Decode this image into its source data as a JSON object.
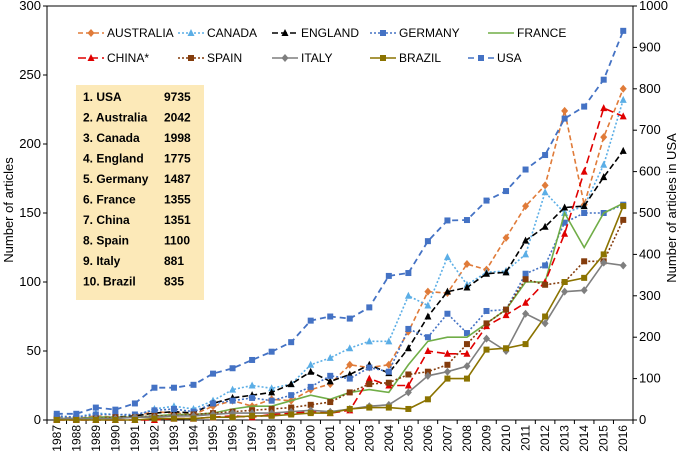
{
  "chart_data": {
    "type": "line",
    "x": [
      1987,
      1988,
      1989,
      1990,
      1991,
      1992,
      1993,
      1994,
      1995,
      1996,
      1997,
      1998,
      1999,
      2000,
      2001,
      2002,
      2003,
      2004,
      2005,
      2006,
      2007,
      2008,
      2009,
      2010,
      2011,
      2012,
      2013,
      2014,
      2015,
      2016
    ],
    "ylabel_left": "Number of articles",
    "ylabel_right": "Number of articles in USA",
    "ylim_left": [
      0,
      300
    ],
    "ylim_right": [
      0,
      1000
    ],
    "yticks_left": [
      0,
      50,
      100,
      150,
      200,
      250,
      300
    ],
    "yticks_right": [
      0,
      100,
      200,
      300,
      400,
      500,
      600,
      700,
      800,
      900,
      1000
    ],
    "series": [
      {
        "name": "AUSTRALIA",
        "color": "#E07B39",
        "marker": "diamond",
        "dash": "5,3",
        "axis": "left",
        "values": [
          2,
          1,
          3,
          2,
          3,
          6,
          5,
          4,
          10,
          14,
          10,
          15,
          14,
          22,
          26,
          40,
          38,
          40,
          64,
          93,
          92,
          113,
          109,
          132,
          155,
          170,
          224,
          156,
          205,
          240
        ]
      },
      {
        "name": "CANADA",
        "color": "#5BAEE6",
        "marker": "triangle",
        "dash": "2,2",
        "axis": "left",
        "values": [
          2,
          2,
          5,
          4,
          3,
          8,
          10,
          8,
          14,
          22,
          25,
          23,
          26,
          40,
          45,
          52,
          57,
          57,
          90,
          83,
          118,
          98,
          107,
          108,
          120,
          165,
          150,
          155,
          185,
          232
        ]
      },
      {
        "name": "ENGLAND",
        "color": "#000000",
        "marker": "triangle",
        "dash": "6,3",
        "axis": "left",
        "values": [
          1,
          1,
          2,
          2,
          3,
          5,
          6,
          5,
          12,
          16,
          18,
          20,
          26,
          35,
          28,
          33,
          40,
          34,
          52,
          75,
          93,
          96,
          106,
          107,
          130,
          140,
          154,
          155,
          176,
          195
        ]
      },
      {
        "name": "GERMANY",
        "color": "#4472C4",
        "marker": "square",
        "dash": "2,2",
        "axis": "left",
        "values": [
          3,
          2,
          4,
          4,
          4,
          7,
          8,
          6,
          12,
          14,
          16,
          14,
          18,
          24,
          32,
          30,
          38,
          35,
          66,
          60,
          77,
          63,
          79,
          80,
          106,
          112,
          143,
          150,
          150,
          156
        ]
      },
      {
        "name": "FRANCE",
        "color": "#70AD47",
        "marker": "none",
        "dash": "",
        "axis": "left",
        "values": [
          1,
          1,
          2,
          2,
          2,
          3,
          4,
          4,
          5,
          8,
          10,
          10,
          14,
          18,
          15,
          20,
          22,
          20,
          40,
          57,
          60,
          60,
          70,
          80,
          100,
          100,
          150,
          125,
          150,
          157
        ]
      },
      {
        "name": "CHINA*",
        "color": "#E00000",
        "marker": "triangle",
        "dash": "8,4",
        "axis": "left",
        "values": [
          0,
          0,
          0,
          0,
          0,
          0,
          1,
          1,
          2,
          3,
          2,
          4,
          5,
          6,
          5,
          7,
          30,
          25,
          25,
          50,
          48,
          48,
          68,
          76,
          85,
          100,
          135,
          180,
          226,
          220
        ]
      },
      {
        "name": "SPAIN",
        "color": "#843C0C",
        "marker": "square",
        "dash": "2,2",
        "axis": "left",
        "values": [
          1,
          1,
          1,
          2,
          2,
          3,
          3,
          4,
          5,
          6,
          7,
          8,
          9,
          11,
          13,
          20,
          26,
          27,
          33,
          35,
          40,
          55,
          70,
          80,
          102,
          98,
          100,
          115,
          115,
          145
        ]
      },
      {
        "name": "ITALY",
        "color": "#7F7F7F",
        "marker": "diamond",
        "dash": "",
        "axis": "left",
        "values": [
          1,
          1,
          1,
          1,
          2,
          2,
          3,
          3,
          4,
          5,
          5,
          5,
          6,
          7,
          6,
          8,
          10,
          11,
          20,
          32,
          35,
          39,
          59,
          50,
          77,
          70,
          93,
          94,
          114,
          112
        ]
      },
      {
        "name": "BRAZIL",
        "color": "#8B7300",
        "marker": "square",
        "dash": "",
        "axis": "left",
        "values": [
          0,
          0,
          0,
          0,
          0,
          1,
          1,
          1,
          2,
          2,
          3,
          3,
          4,
          5,
          5,
          8,
          9,
          9,
          8,
          15,
          30,
          30,
          51,
          52,
          55,
          75,
          100,
          103,
          120,
          155
        ]
      },
      {
        "name": "USA",
        "color": "#4472C4",
        "marker": "square",
        "dash": "6,4",
        "axis": "right",
        "values": [
          15,
          15,
          30,
          25,
          40,
          78,
          78,
          85,
          112,
          125,
          145,
          165,
          188,
          240,
          250,
          245,
          272,
          348,
          355,
          432,
          482,
          483,
          530,
          553,
          605,
          640,
          728,
          757,
          822,
          940
        ]
      }
    ],
    "ranking_box": {
      "rows": [
        {
          "label": "1. USA",
          "value": "9735"
        },
        {
          "label": "2. Australia",
          "value": "2042"
        },
        {
          "label": "3. Canada",
          "value": "1998"
        },
        {
          "label": "4. England",
          "value": "1775"
        },
        {
          "label": "5. Germany",
          "value": "1487"
        },
        {
          "label": "6. France",
          "value": "1355"
        },
        {
          "label": "7. China",
          "value": "1351"
        },
        {
          "label": "8. Spain",
          "value": "1100"
        },
        {
          "label": "9. Italy",
          "value": "881"
        },
        {
          "label": "10. Brazil",
          "value": "835"
        }
      ]
    }
  }
}
